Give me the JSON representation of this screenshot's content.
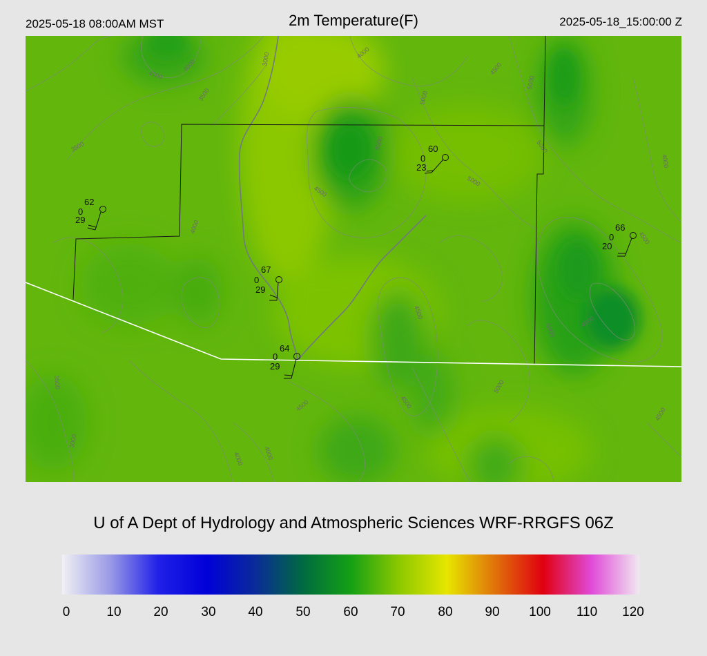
{
  "header": {
    "local_time": "2025-05-18 08:00AM MST",
    "title": "2m Temperature(F)",
    "utc_time": "2025-05-18_15:00:00 Z"
  },
  "credit": "U of A Dept of Hydrology and Atmospheric Sciences WRF-RRGFS 06Z",
  "colorbar": {
    "ticks": [
      "0",
      "10",
      "20",
      "30",
      "40",
      "50",
      "60",
      "70",
      "80",
      "90",
      "100",
      "110",
      "120"
    ],
    "colors": [
      "#f0f0f4",
      "#9a9ae6",
      "#2020e8",
      "#0000d8",
      "#0a2a9a",
      "#006a40",
      "#14a014",
      "#8cc800",
      "#e6e600",
      "#e0720a",
      "#e00010",
      "#e04ad8",
      "#f0e8f0"
    ]
  },
  "stations": [
    {
      "temp": "62",
      "dew": "0",
      "gust": "29"
    },
    {
      "temp": "60",
      "dew": "0",
      "gust": "23"
    },
    {
      "temp": "66",
      "dew": "0",
      "gust": "20"
    },
    {
      "temp": "67",
      "dew": "0",
      "gust": "29"
    },
    {
      "temp": "64",
      "dew": "0",
      "gust": "29"
    }
  ],
  "contour_labels": [
    "4000",
    "4000",
    "3000",
    "3500",
    "4000",
    "4500",
    "5000",
    "3500",
    "5000",
    "4500",
    "5000",
    "5000",
    "4000",
    "4500",
    "4000",
    "5000",
    "4500",
    "3500",
    "4500",
    "3000",
    "4000",
    "4000",
    "5000",
    "4500",
    "5000",
    "4500",
    "4500"
  ]
}
